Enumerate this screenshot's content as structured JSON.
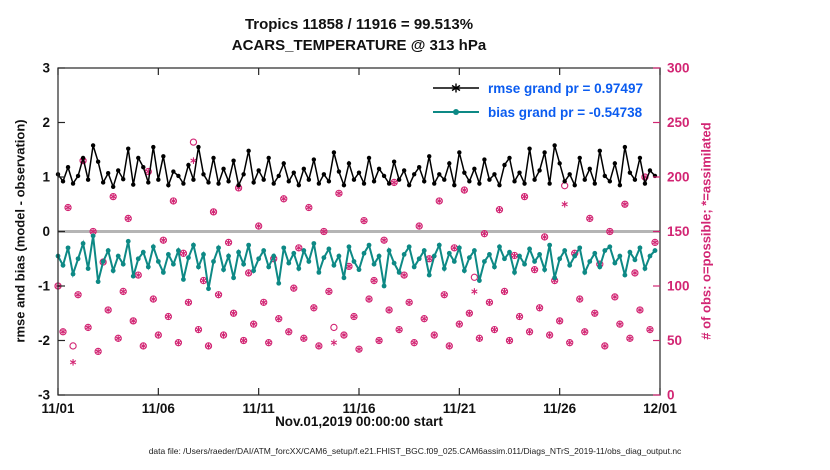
{
  "header": {
    "title_line1": "Tropics 11858 / 11916 = 99.513%",
    "title_line2": "ACARS_TEMPERATURE @ 313 hPa"
  },
  "axes": {
    "xlabel": "Nov.01,2019 00:00:00 start",
    "ylabel_left": "rmse and bias (model - observation)",
    "ylabel_right": "# of obs: o=possible; *=assimilated"
  },
  "legend": {
    "rmse_label": "rmse grand pr = 0.97497",
    "bias_label": "bias grand pr = -0.54738"
  },
  "footer": {
    "datafile": "data file: /Users/raeder/DAI/ATM_forcXX/CAM6_setup/f.e21.FHIST_BGC.f09_025.CAM6assim.011/Diags_NTrS_2019-11/obs_diag_output.nc"
  },
  "colors": {
    "rmse": "#000000",
    "bias": "#0d8985",
    "obs": "#d22573",
    "legend_text": "#0b5cf0",
    "zero_line": "#b5b5b5",
    "spine": "#262626"
  },
  "chart_data": {
    "type": "line",
    "title": [
      "Tropics 11858 / 11916 = 99.513%",
      "ACARS_TEMPERATURE @ 313 hPa"
    ],
    "xlabel": "Nov.01,2019 00:00:00 start",
    "ylabel_left": "rmse and bias (model - observation)",
    "ylabel_right": "# of obs: o=possible; *=assimilated",
    "xlim": [
      0,
      30
    ],
    "xticks": {
      "positions": [
        0,
        5,
        10,
        15,
        20,
        25,
        30
      ],
      "labels": [
        "11/01",
        "11/06",
        "11/11",
        "11/16",
        "11/21",
        "11/26",
        "12/01"
      ]
    },
    "ylim_left": [
      -3,
      3
    ],
    "yticks_left": [
      3,
      2,
      1,
      0,
      -1,
      -2,
      -3
    ],
    "ylim_right": [
      0,
      300
    ],
    "yticks_right": [
      0,
      50,
      100,
      150,
      200,
      250,
      300
    ],
    "x_days": {
      "start": 0,
      "step": 0.25,
      "count": 120
    },
    "zero_line": 0,
    "grid": false,
    "legend_position": "top-right-inside",
    "series": [
      {
        "name": "rmse",
        "axis": "left",
        "marker": "point",
        "values": [
          1.05,
          0.92,
          1.18,
          0.88,
          1.02,
          1.35,
          0.95,
          1.58,
          1.28,
          0.9,
          1.07,
          0.82,
          1.12,
          0.96,
          1.52,
          0.86,
          1.35,
          1.18,
          0.9,
          1.55,
          0.95,
          1.38,
          0.85,
          1.1,
          1.02,
          0.88,
          1.22,
          0.95,
          1.55,
          1.05,
          0.9,
          1.35,
          0.88,
          1.15,
          0.92,
          1.3,
          0.85,
          1.05,
          1.48,
          0.9,
          1.12,
          0.95,
          1.35,
          0.88,
          1.02,
          1.25,
          0.92,
          1.08,
          0.85,
          1.15,
          0.95,
          1.32,
          0.88,
          1.05,
          0.92,
          1.45,
          1.1,
          0.85,
          1.25,
          0.95,
          1.08,
          0.88,
          1.35,
          0.92,
          1.15,
          1.02,
          0.88,
          1.28,
          0.95,
          1.12,
          0.85,
          1.05,
          1.18,
          0.92,
          1.38,
          0.88,
          1.05,
          0.95,
          1.25,
          0.85,
          1.45,
          1.08,
          0.92,
          1.15,
          0.88,
          1.32,
          0.95,
          1.05,
          0.85,
          1.22,
          1.35,
          0.92,
          1.08,
          0.88,
          1.52,
          0.95,
          1.12,
          1.45,
          0.88,
          1.58,
          1.25,
          0.92,
          1.05,
          0.85,
          1.35,
          0.95,
          1.15,
          0.88,
          1.48,
          1.02,
          0.92,
          1.25,
          0.85,
          1.55,
          1.08,
          0.95,
          1.35,
          0.88,
          1.12,
          1.02
        ]
      },
      {
        "name": "bias",
        "axis": "left",
        "marker": "point",
        "values": [
          -0.45,
          -0.62,
          -0.3,
          -0.78,
          -0.5,
          -0.22,
          -0.68,
          -0.08,
          -0.92,
          -0.55,
          -0.35,
          -0.72,
          -0.45,
          -0.6,
          -0.18,
          -0.82,
          -0.5,
          -0.38,
          -0.65,
          -0.28,
          -0.55,
          -0.75,
          -0.42,
          -0.6,
          -0.35,
          -0.88,
          -0.48,
          -0.25,
          -0.65,
          -0.42,
          -1.05,
          -0.55,
          -0.3,
          -0.7,
          -0.45,
          -0.85,
          -0.38,
          -0.6,
          -0.25,
          -0.72,
          -0.5,
          -0.35,
          -0.65,
          -0.45,
          -0.95,
          -0.3,
          -0.58,
          -0.4,
          -0.68,
          -0.35,
          -0.55,
          -0.22,
          -0.75,
          -0.48,
          -0.32,
          -0.62,
          -0.45,
          -0.85,
          -0.28,
          -0.55,
          -0.7,
          -0.4,
          -0.25,
          -0.6,
          -0.45,
          -1.0,
          -0.35,
          -0.58,
          -0.75,
          -0.42,
          -0.28,
          -0.65,
          -0.5,
          -0.35,
          -0.8,
          -0.45,
          -0.25,
          -0.68,
          -0.4,
          -0.55,
          -0.3,
          -0.72,
          -0.48,
          -0.35,
          -0.9,
          -0.55,
          -0.42,
          -0.65,
          -0.28,
          -0.5,
          -0.38,
          -0.75,
          -0.45,
          -0.6,
          -0.32,
          -0.55,
          -0.42,
          -0.7,
          -0.25,
          -0.85,
          -0.5,
          -0.35,
          -0.62,
          -0.45,
          -0.3,
          -0.75,
          -0.55,
          -0.4,
          -0.65,
          -0.35,
          -0.28,
          -0.58,
          -0.45,
          -0.8,
          -0.38,
          -0.52,
          -0.3,
          -0.68,
          -0.45,
          -0.35
        ]
      },
      {
        "name": "possible",
        "axis": "right",
        "marker": "o",
        "values": [
          100,
          58,
          172,
          45,
          92,
          215,
          62,
          150,
          40,
          122,
          78,
          182,
          52,
          95,
          162,
          68,
          110,
          45,
          205,
          88,
          55,
          142,
          72,
          178,
          48,
          130,
          85,
          232,
          60,
          105,
          45,
          168,
          92,
          55,
          140,
          75,
          190,
          50,
          112,
          65,
          155,
          85,
          48,
          125,
          70,
          180,
          58,
          98,
          135,
          52,
          172,
          80,
          45,
          150,
          95,
          62,
          185,
          55,
          118,
          72,
          42,
          160,
          88,
          105,
          50,
          142,
          78,
          195,
          60,
          110,
          85,
          48,
          155,
          70,
          125,
          55,
          178,
          92,
          45,
          135,
          65,
          188,
          75,
          108,
          52,
          148,
          85,
          60,
          170,
          95,
          50,
          128,
          72,
          182,
          58,
          115,
          80,
          145,
          55,
          105,
          68,
          192,
          48,
          130,
          88,
          58,
          162,
          75,
          120,
          45,
          150,
          90,
          65,
          175,
          52,
          112,
          78,
          200,
          60,
          140
        ]
      },
      {
        "name": "assimilated",
        "axis": "right",
        "marker": "*",
        "same_as": "possible",
        "exceptions": [
          {
            "i": 3,
            "v": 30
          },
          {
            "i": 27,
            "v": 215
          },
          {
            "i": 55,
            "v": 48
          },
          {
            "i": 83,
            "v": 95
          },
          {
            "i": 101,
            "v": 175
          }
        ]
      }
    ]
  }
}
